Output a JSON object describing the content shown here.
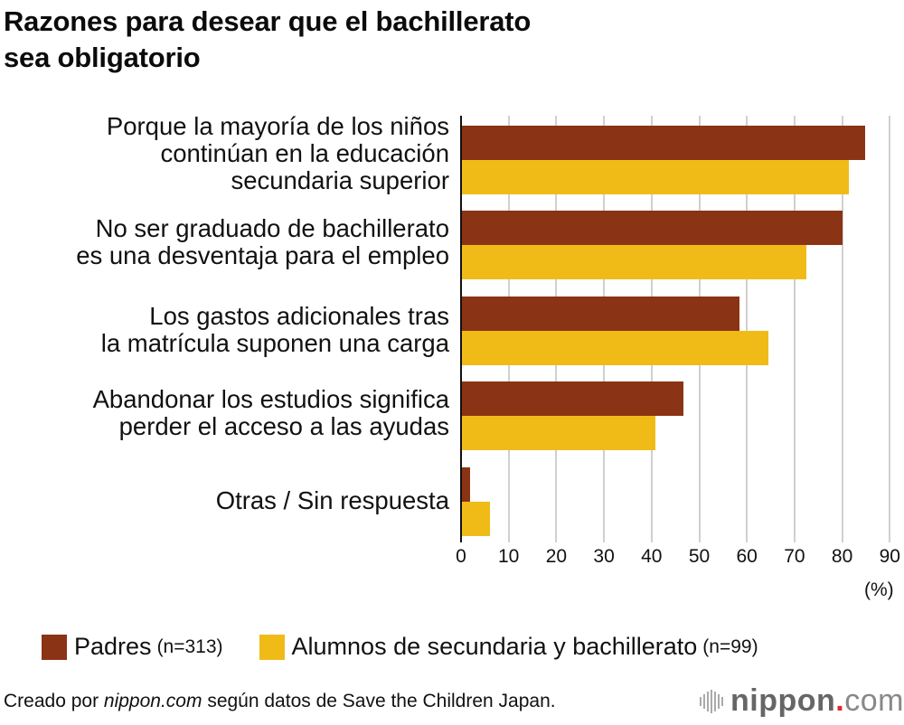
{
  "title": {
    "line1": "Razones para desear que el bachillerato",
    "line2": "sea obligatorio"
  },
  "colors": {
    "padres": "#8b3315",
    "alumnos": "#f0bb17",
    "grid": "#d0d0d0",
    "axis": "#111111",
    "logo_dot": "#e0262b"
  },
  "categories": [
    {
      "lines": [
        "Porque la mayoría de los niños",
        "continúan en la educación",
        "secundaria superior"
      ]
    },
    {
      "lines": [
        "No ser graduado de bachillerato",
        "es una desventaja para el empleo"
      ]
    },
    {
      "lines": [
        "Los gastos adicionales tras",
        "la matrícula suponen una carga"
      ]
    },
    {
      "lines": [
        "Abandonar los estudios significa",
        "perder el acceso a las ayudas"
      ]
    },
    {
      "lines": [
        "Otras / Sin respuesta"
      ]
    }
  ],
  "ticks": [
    "0",
    "10",
    "20",
    "30",
    "40",
    "50",
    "60",
    "70",
    "80",
    "90"
  ],
  "unit": "(%)",
  "legend": {
    "padres": {
      "label": "Padres",
      "n": "(n=313)"
    },
    "alumnos": {
      "label": "Alumnos de secundaria y bachillerato",
      "n": "(n=99)"
    }
  },
  "footer": {
    "prefix": "Creado por ",
    "site": "nippon.com",
    "suffix": " según datos de Save the Children Japan."
  },
  "logo": {
    "name": "nippon",
    "dot": ".",
    "tld": "com"
  },
  "chart_data": {
    "type": "bar",
    "orientation": "horizontal",
    "title": "Razones para desear que el bachillerato sea obligatorio",
    "categories": [
      "Porque la mayoría de los niños continúan en la educación secundaria superior",
      "No ser graduado de bachillerato es una desventaja para el empleo",
      "Los gastos adicionales tras la matrícula suponen una carga",
      "Abandonar los estudios significa perder el acceso a las ayudas",
      "Otras / Sin respuesta"
    ],
    "series": [
      {
        "name": "Padres (n=313)",
        "color": "#8b3315",
        "values": [
          84.8,
          80.0,
          58.5,
          46.6,
          1.9
        ]
      },
      {
        "name": "Alumnos de secundaria y bachillerato (n=99)",
        "color": "#f0bb17",
        "values": [
          81.4,
          72.4,
          64.5,
          40.8,
          6.1
        ]
      }
    ],
    "xlabel": "(%)",
    "ylabel": "",
    "xlim": [
      0,
      90
    ],
    "xticks": [
      0,
      10,
      20,
      30,
      40,
      50,
      60,
      70,
      80,
      90
    ],
    "grid": true,
    "legend_position": "bottom",
    "source": "Creado por nippon.com según datos de Save the Children Japan."
  }
}
